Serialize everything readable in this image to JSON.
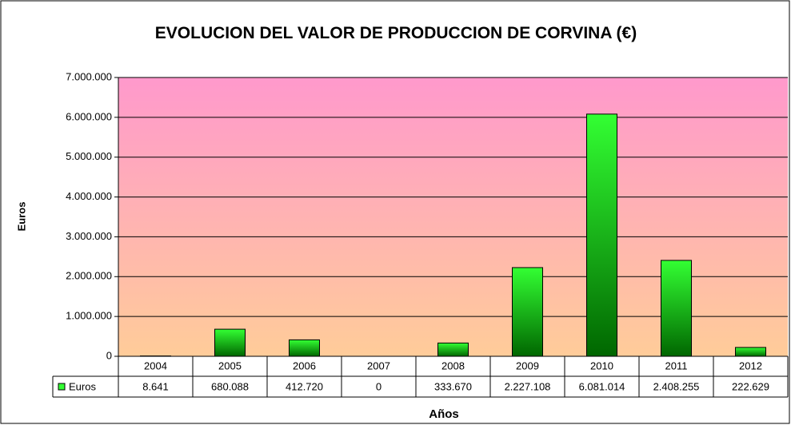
{
  "chart_data": {
    "type": "bar",
    "title": "EVOLUCION DEL VALOR DE PRODUCCION DE CORVINA (€)",
    "y_label": "Euros",
    "x_label": "Años",
    "categories": [
      "2004",
      "2005",
      "2006",
      "2007",
      "2008",
      "2009",
      "2010",
      "2011",
      "2012"
    ],
    "series": [
      {
        "name": "Euros",
        "color": "#33ff33",
        "values": [
          8641,
          680088,
          412720,
          0,
          333670,
          2227108,
          6081014,
          2408255,
          222629
        ],
        "value_labels": [
          "8.641",
          "680.088",
          "412.720",
          "0",
          "333.670",
          "2.227.108",
          "6.081.014",
          "2.408.255",
          "222.629"
        ]
      }
    ],
    "ylim": [
      0,
      7000000
    ],
    "yticks": [
      0,
      {
        "value": 1000000,
        "label": "1.000.000"
      },
      {
        "value": 2000000,
        "label": "2.000.000"
      },
      {
        "value": 3000000,
        "label": "3.000.000"
      },
      {
        "value": 4000000,
        "label": "4.000.000"
      },
      {
        "value": 5000000,
        "label": "5.000.000"
      },
      {
        "value": 6000000,
        "label": "6.000.000"
      },
      {
        "value": 7000000,
        "label": "7.000.000"
      }
    ],
    "grid": true
  }
}
